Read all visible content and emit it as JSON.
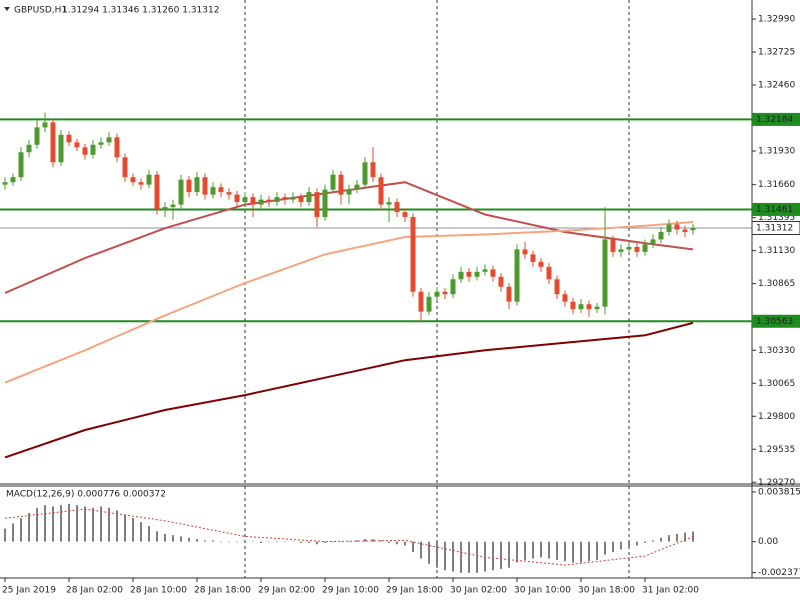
{
  "chart_data": {
    "type": "candlestick",
    "title": "GBPUSD,H1",
    "ohlc_label": "1.31294 1.31346 1.31260 1.31312",
    "categories": [
      "25 Jan 2019",
      null,
      null,
      null,
      null,
      null,
      null,
      null,
      "28 Jan 02:00",
      null,
      null,
      null,
      null,
      null,
      null,
      null,
      "28 Jan 10:00",
      null,
      null,
      null,
      null,
      null,
      null,
      null,
      "28 Jan 18:00",
      null,
      null,
      null,
      null,
      null,
      null,
      null,
      "29 Jan 02:00",
      null,
      null,
      null,
      null,
      null,
      null,
      null,
      "29 Jan 10:00",
      null,
      null,
      null,
      null,
      null,
      null,
      null,
      "29 Jan 18:00",
      null,
      null,
      null,
      null,
      null,
      null,
      null,
      "30 Jan 02:00",
      null,
      null,
      null,
      null,
      null,
      null,
      null,
      "30 Jan 10:00",
      null,
      null,
      null,
      null,
      null,
      null,
      null,
      "30 Jan 18:00",
      null,
      null,
      null,
      null,
      null,
      null,
      null,
      "31 Jan 02:00",
      null,
      null,
      null,
      null,
      null,
      null
    ],
    "candles": [
      [
        1.3166,
        1.3172,
        1.3162,
        1.3168
      ],
      [
        1.3168,
        1.3175,
        1.3165,
        1.3172
      ],
      [
        1.3172,
        1.3196,
        1.3169,
        1.3192
      ],
      [
        1.3192,
        1.3202,
        1.3188,
        1.3198
      ],
      [
        1.3198,
        1.3218,
        1.3195,
        1.3212
      ],
      [
        1.3212,
        1.3224,
        1.3208,
        1.3216
      ],
      [
        1.3216,
        1.3219,
        1.318,
        1.3184
      ],
      [
        1.3184,
        1.321,
        1.3181,
        1.3206
      ],
      [
        1.3206,
        1.3209,
        1.3197,
        1.32
      ],
      [
        1.32,
        1.3203,
        1.3193,
        1.3196
      ],
      [
        1.3196,
        1.3199,
        1.3186,
        1.319
      ],
      [
        1.319,
        1.3202,
        1.3187,
        1.3198
      ],
      [
        1.3198,
        1.3204,
        1.3195,
        1.32
      ],
      [
        1.32,
        1.3208,
        1.3197,
        1.3204
      ],
      [
        1.3204,
        1.3207,
        1.3184,
        1.3188
      ],
      [
        1.3188,
        1.3191,
        1.3168,
        1.3172
      ],
      [
        1.3172,
        1.3175,
        1.3165,
        1.3168
      ],
      [
        1.3168,
        1.3171,
        1.3162,
        1.3166
      ],
      [
        1.3166,
        1.3178,
        1.3163,
        1.3174
      ],
      [
        1.3174,
        1.3177,
        1.3142,
        1.3146
      ],
      [
        1.3146,
        1.3152,
        1.314,
        1.3148
      ],
      [
        1.3148,
        1.3154,
        1.3138,
        1.315
      ],
      [
        1.315,
        1.3174,
        1.3147,
        1.317
      ],
      [
        1.317,
        1.3173,
        1.3156,
        1.316
      ],
      [
        1.316,
        1.3176,
        1.3157,
        1.3172
      ],
      [
        1.3172,
        1.3175,
        1.3154,
        1.3158
      ],
      [
        1.3158,
        1.3168,
        1.3155,
        1.3164
      ],
      [
        1.3164,
        1.3167,
        1.3156,
        1.316
      ],
      [
        1.316,
        1.3163,
        1.3154,
        1.3158
      ],
      [
        1.3158,
        1.3161,
        1.3148,
        1.3152
      ],
      [
        1.3152,
        1.316,
        1.3149,
        1.3156
      ],
      [
        1.3156,
        1.3159,
        1.314,
        1.315
      ],
      [
        1.315,
        1.3158,
        1.3147,
        1.3154
      ],
      [
        1.3154,
        1.3157,
        1.3148,
        1.3152
      ],
      [
        1.3152,
        1.316,
        1.3149,
        1.3156
      ],
      [
        1.3156,
        1.3159,
        1.315,
        1.3154
      ],
      [
        1.3154,
        1.316,
        1.3151,
        1.3156
      ],
      [
        1.3156,
        1.3159,
        1.3148,
        1.3152
      ],
      [
        1.3152,
        1.3164,
        1.3149,
        1.316
      ],
      [
        1.316,
        1.3163,
        1.3132,
        1.314
      ],
      [
        1.314,
        1.3166,
        1.3137,
        1.3162
      ],
      [
        1.3162,
        1.3178,
        1.3159,
        1.3174
      ],
      [
        1.3174,
        1.3177,
        1.315,
        1.3158
      ],
      [
        1.3158,
        1.3166,
        1.315,
        1.3162
      ],
      [
        1.3162,
        1.317,
        1.3159,
        1.3166
      ],
      [
        1.3166,
        1.3188,
        1.3163,
        1.3184
      ],
      [
        1.3184,
        1.3196,
        1.3168,
        1.3172
      ],
      [
        1.3172,
        1.3175,
        1.3146,
        1.315
      ],
      [
        1.315,
        1.3156,
        1.3136,
        1.3152
      ],
      [
        1.3152,
        1.3155,
        1.314,
        1.3144
      ],
      [
        1.3144,
        1.3147,
        1.3136,
        1.314
      ],
      [
        1.314,
        1.3143,
        1.3076,
        1.308
      ],
      [
        1.308,
        1.3083,
        1.3056,
        1.3064
      ],
      [
        1.3064,
        1.308,
        1.3061,
        1.3076
      ],
      [
        1.3076,
        1.3084,
        1.3073,
        1.308
      ],
      [
        1.308,
        1.3083,
        1.3074,
        1.3078
      ],
      [
        1.3078,
        1.3094,
        1.3075,
        1.309
      ],
      [
        1.309,
        1.31,
        1.3087,
        1.3096
      ],
      [
        1.3096,
        1.3099,
        1.3088,
        1.3092
      ],
      [
        1.3092,
        1.31,
        1.3089,
        1.3096
      ],
      [
        1.3096,
        1.3102,
        1.3093,
        1.3098
      ],
      [
        1.3098,
        1.3101,
        1.3088,
        1.3092
      ],
      [
        1.3092,
        1.3095,
        1.308,
        1.3084
      ],
      [
        1.3084,
        1.3087,
        1.3066,
        1.3072
      ],
      [
        1.3072,
        1.3118,
        1.3069,
        1.3114
      ],
      [
        1.3114,
        1.312,
        1.3106,
        1.311
      ],
      [
        1.311,
        1.3113,
        1.31,
        1.3104
      ],
      [
        1.3104,
        1.3107,
        1.3096,
        1.31
      ],
      [
        1.31,
        1.3103,
        1.3086,
        1.309
      ],
      [
        1.309,
        1.3093,
        1.3074,
        1.3078
      ],
      [
        1.3078,
        1.3081,
        1.3068,
        1.3072
      ],
      [
        1.3072,
        1.3075,
        1.3062,
        1.3066
      ],
      [
        1.3066,
        1.3074,
        1.3063,
        1.307
      ],
      [
        1.307,
        1.3073,
        1.306,
        1.3066
      ],
      [
        1.3066,
        1.3071,
        1.3063,
        1.3068
      ],
      [
        1.3068,
        1.3148,
        1.3062,
        1.3122
      ],
      [
        1.3122,
        1.3125,
        1.3108,
        1.3112
      ],
      [
        1.3112,
        1.3118,
        1.3108,
        1.3114
      ],
      [
        1.3114,
        1.312,
        1.3111,
        1.3116
      ],
      [
        1.3116,
        1.3119,
        1.3108,
        1.3112
      ],
      [
        1.3112,
        1.3122,
        1.3109,
        1.3118
      ],
      [
        1.3118,
        1.3126,
        1.3115,
        1.3122
      ],
      [
        1.3122,
        1.3132,
        1.3119,
        1.3128
      ],
      [
        1.3128,
        1.3138,
        1.3125,
        1.3134
      ],
      [
        1.3134,
        1.3137,
        1.3126,
        1.313
      ],
      [
        1.313,
        1.3133,
        1.3124,
        1.3128
      ],
      [
        1.31294,
        1.31346,
        1.3126,
        1.31312
      ]
    ],
    "up_color": "#4e9a2e",
    "down_color": "#e64a2e",
    "ylim": [
      1.29256,
      1.33143
    ],
    "yticks": [
      {
        "value": 1.3299,
        "label": "1.32990"
      },
      1.32725,
      {
        "value": 1.3246,
        "label": "1.32460"
      },
      {
        "value": 1.3193,
        "label": "1.31930"
      },
      {
        "value": 1.3166,
        "label": "1.31660"
      },
      1.31395,
      {
        "value": 1.3113,
        "label": "1.31130"
      },
      1.30865,
      {
        "value": 1.3033,
        "label": "1.30330"
      },
      1.30065,
      {
        "value": 1.298,
        "label": "1.29800"
      },
      1.29535,
      {
        "value": 1.2927,
        "label": "1.29270"
      }
    ],
    "levels": [
      1.32184,
      1.31461,
      1.30563
    ],
    "level_color": "#1e8c1e",
    "last_price": 1.31312,
    "ma_x": [
      0,
      10,
      20,
      30,
      40,
      50,
      60,
      70,
      80,
      86
    ],
    "moving_averages": [
      {
        "color": "#c0504d",
        "values": [
          1.3079,
          1.3107,
          1.3131,
          1.315,
          1.3159,
          1.3168,
          1.3142,
          1.3128,
          1.3119,
          1.3114
        ]
      },
      {
        "color": "#f4a582",
        "values": [
          1.3007,
          1.3033,
          1.3061,
          1.3087,
          1.311,
          1.3124,
          1.3126,
          1.3129,
          1.3133,
          1.3136
        ]
      },
      {
        "color": "#800000",
        "values": [
          1.2947,
          1.2969,
          1.2985,
          1.2997,
          1.3011,
          1.3025,
          1.3033,
          1.3039,
          1.3045,
          1.3055
        ]
      }
    ],
    "macd": {
      "title": "MACD(12,26,9) 0.000776 0.000372",
      "values": [
        0.001,
        0.0014,
        0.0018,
        0.0022,
        0.0026,
        0.0028,
        0.0027,
        0.0028,
        0.0029,
        0.0028,
        0.0027,
        0.0026,
        0.0027,
        0.0026,
        0.0024,
        0.0021,
        0.0018,
        0.0015,
        0.0012,
        0.0008,
        0.0006,
        0.0005,
        0.0004,
        0.0003,
        0.0002,
        0.0001,
        0.0001,
        0,
        0,
        0,
        0,
        0,
        -0.0001,
        0,
        0,
        0,
        0,
        -0.0001,
        -0.0001,
        -0.0002,
        -0.0001,
        0,
        0,
        0,
        0.0001,
        0.0002,
        0.0002,
        0.0001,
        -0.0001,
        -0.0002,
        -0.0003,
        -0.0008,
        -0.0013,
        -0.0017,
        -0.002,
        -0.0022,
        -0.0023,
        -0.0024,
        -0.0024,
        -0.0024,
        -0.0023,
        -0.0022,
        -0.0021,
        -0.002,
        -0.0016,
        -0.0014,
        -0.0013,
        -0.0012,
        -0.0013,
        -0.0014,
        -0.0015,
        -0.0016,
        -0.0016,
        -0.0015,
        -0.0014,
        -0.001,
        -0.0008,
        -0.0006,
        -0.0004,
        -0.0003,
        -0.0001,
        0.0001,
        0.0003,
        0.0005,
        0.0006,
        0.0007,
        0.000776
      ],
      "signal": [
        0.0018,
        0.0025,
        0.0016,
        0.0004,
        0,
        0.0001,
        -0.0012,
        -0.0018,
        -0.0011,
        0.000372
      ],
      "ylim": [
        -0.00279,
        0.00427
      ],
      "yticks": [
        0.003815,
        {
          "value": 0,
          "label": "0.00"
        },
        -0.002377
      ],
      "color": "#555555",
      "signal_color": "#d04030"
    }
  }
}
